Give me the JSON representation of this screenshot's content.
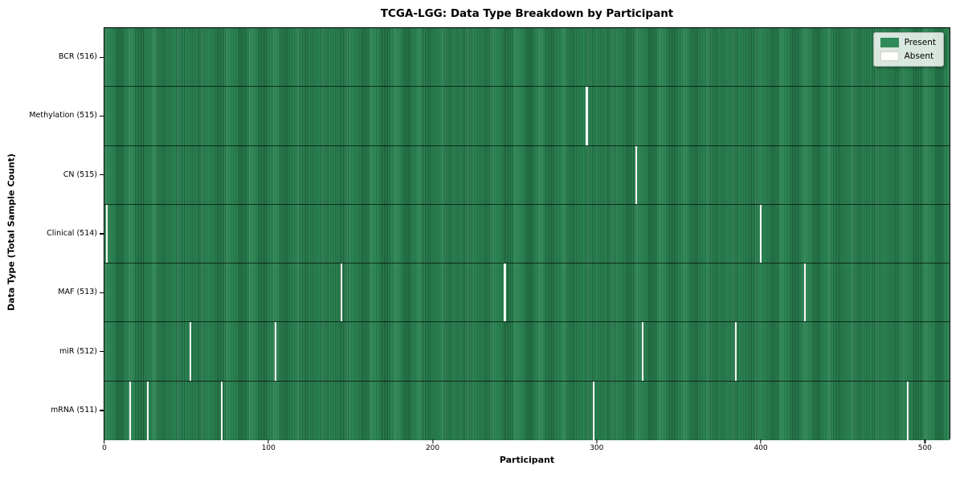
{
  "title": "TCGA-LGG: Data Type Breakdown by Participant",
  "legend": {
    "present_label": "Present",
    "absent_label": "Absent"
  },
  "colors": {
    "present": "#2e8b57",
    "present_dark": "#1d5e39",
    "absent": "#fafaf6",
    "row_separator": "rgba(0,0,0,0.65)"
  },
  "chart_data": {
    "type": "heatmap",
    "title": "TCGA-LGG: Data Type Breakdown by Participant",
    "xlabel": "Participant",
    "ylabel": "Data Type (Total Sample Count)",
    "legend_entries": [
      "Present",
      "Absent"
    ],
    "legend_position": "upper right",
    "n_participants": 516,
    "xlim": [
      -0.5,
      515.5
    ],
    "x_ticks": [
      0,
      100,
      200,
      300,
      400,
      500
    ],
    "grid": false,
    "rows": [
      {
        "label": "BCR (516)",
        "data_type": "BCR",
        "present_count": 516,
        "absent_participants": []
      },
      {
        "label": "Methylation (515)",
        "data_type": "Methylation",
        "present_count": 515,
        "absent_participants": [
          294
        ]
      },
      {
        "label": "CN (515)",
        "data_type": "CN",
        "present_count": 515,
        "absent_participants": [
          324
        ]
      },
      {
        "label": "Clinical (514)",
        "data_type": "Clinical",
        "present_count": 514,
        "absent_participants": [
          1,
          400
        ]
      },
      {
        "label": "MAF (513)",
        "data_type": "MAF",
        "present_count": 513,
        "absent_participants": [
          144,
          244,
          427
        ]
      },
      {
        "label": "miR (512)",
        "data_type": "miR",
        "present_count": 512,
        "absent_participants": [
          52,
          104,
          328,
          385
        ]
      },
      {
        "label": "mRNA (511)",
        "data_type": "mRNA",
        "present_count": 511,
        "absent_participants": [
          15,
          26,
          71,
          298,
          490
        ]
      }
    ]
  }
}
